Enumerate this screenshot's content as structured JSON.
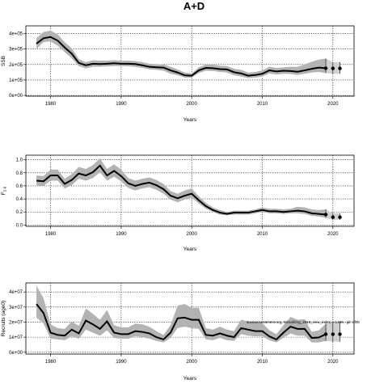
{
  "title": "A+D",
  "footnote": "stockassessment.org, NSsallring_2019_new_index, r-1465 , git: df0b",
  "chart_data": [
    {
      "type": "line",
      "ylabel": "SSB",
      "xlabel": "Years",
      "xlim": [
        1976.5,
        2023
      ],
      "ylim": [
        -5000,
        450000
      ],
      "yticks": [
        0,
        100000,
        200000,
        300000,
        400000
      ],
      "ytick_labels": [
        "0e+00",
        "1e+05",
        "2e+05",
        "3e+05",
        "4e+05"
      ],
      "xticks": [
        1980,
        1990,
        2000,
        2010,
        2020
      ],
      "xtick_labels": [
        "1980",
        "1990",
        "2000",
        "2010",
        "2020"
      ],
      "grid": "dotted",
      "years": [
        1978,
        1979,
        1980,
        1981,
        1982,
        1983,
        1984,
        1985,
        1986,
        1987,
        1988,
        1989,
        1990,
        1991,
        1992,
        1993,
        1994,
        1995,
        1996,
        1997,
        1998,
        1999,
        2000,
        2001,
        2002,
        2003,
        2004,
        2005,
        2006,
        2007,
        2008,
        2009,
        2010,
        2011,
        2012,
        2013,
        2014,
        2015,
        2016,
        2017,
        2018,
        2019
      ],
      "estimate": [
        335000,
        370000,
        378000,
        355000,
        310000,
        270000,
        210000,
        195000,
        205000,
        203000,
        205000,
        208000,
        205000,
        205000,
        203000,
        195000,
        185000,
        182000,
        180000,
        162000,
        148000,
        130000,
        128000,
        162000,
        178000,
        176000,
        170000,
        168000,
        150000,
        142000,
        128000,
        132000,
        140000,
        162000,
        155000,
        160000,
        158000,
        153000,
        162000,
        172000,
        180000,
        176000
      ],
      "lower": [
        300000,
        345000,
        350000,
        322000,
        280000,
        240000,
        190000,
        175000,
        185000,
        185000,
        188000,
        190000,
        190000,
        188000,
        185000,
        178000,
        168000,
        165000,
        160000,
        140000,
        130000,
        115000,
        115000,
        145000,
        160000,
        158000,
        152000,
        148000,
        130000,
        122000,
        112000,
        115000,
        122000,
        142000,
        135000,
        140000,
        138000,
        132000,
        140000,
        148000,
        152000,
        145000
      ],
      "upper": [
        370000,
        410000,
        420000,
        395000,
        345000,
        305000,
        235000,
        215000,
        228000,
        225000,
        225000,
        228000,
        225000,
        225000,
        222000,
        215000,
        205000,
        202000,
        200000,
        185000,
        168000,
        148000,
        142000,
        182000,
        200000,
        200000,
        192000,
        190000,
        172000,
        165000,
        148000,
        152000,
        162000,
        185000,
        178000,
        182000,
        185000,
        185000,
        200000,
        218000,
        232000,
        238000
      ],
      "forecast_years": [
        2020,
        2021
      ],
      "forecast_estimate": [
        175000,
        175000
      ],
      "forecast_lower": [
        140000,
        140000
      ],
      "forecast_upper": [
        215000,
        215000
      ],
      "last_year_point": [
        2019,
        176000
      ]
    },
    {
      "type": "line",
      "ylabel": "F2-6",
      "ylabel_main": "F",
      "ylabel_sub": "2-6",
      "xlabel": "Years",
      "xlim": [
        1976.5,
        2023
      ],
      "ylim": [
        -0.02,
        1.07
      ],
      "yticks": [
        0,
        0.2,
        0.4,
        0.6,
        0.8,
        1.0
      ],
      "ytick_labels": [
        "0.0",
        "0.2",
        "0.4",
        "0.6",
        "0.8",
        "1.0"
      ],
      "xticks": [
        1980,
        1990,
        2000,
        2010,
        2020
      ],
      "xtick_labels": [
        "1980",
        "1990",
        "2000",
        "2010",
        "2020"
      ],
      "grid": "dotted",
      "years": [
        1978,
        1979,
        1980,
        1981,
        1982,
        1983,
        1984,
        1985,
        1986,
        1987,
        1988,
        1989,
        1990,
        1991,
        1992,
        1993,
        1994,
        1995,
        1996,
        1997,
        1998,
        1999,
        2000,
        2001,
        2002,
        2003,
        2004,
        2005,
        2006,
        2007,
        2008,
        2009,
        2010,
        2011,
        2012,
        2013,
        2014,
        2015,
        2016,
        2017,
        2018,
        2019
      ],
      "estimate": [
        0.68,
        0.67,
        0.76,
        0.76,
        0.63,
        0.69,
        0.79,
        0.76,
        0.81,
        0.91,
        0.76,
        0.83,
        0.75,
        0.64,
        0.6,
        0.63,
        0.65,
        0.61,
        0.55,
        0.45,
        0.41,
        0.45,
        0.48,
        0.38,
        0.29,
        0.23,
        0.19,
        0.17,
        0.19,
        0.19,
        0.19,
        0.21,
        0.23,
        0.21,
        0.21,
        0.2,
        0.21,
        0.22,
        0.21,
        0.18,
        0.17,
        0.16
      ],
      "lower": [
        0.61,
        0.6,
        0.68,
        0.68,
        0.56,
        0.61,
        0.71,
        0.68,
        0.72,
        0.81,
        0.68,
        0.74,
        0.67,
        0.57,
        0.53,
        0.56,
        0.58,
        0.54,
        0.48,
        0.39,
        0.35,
        0.39,
        0.42,
        0.33,
        0.25,
        0.2,
        0.16,
        0.15,
        0.16,
        0.16,
        0.16,
        0.18,
        0.2,
        0.18,
        0.18,
        0.17,
        0.18,
        0.18,
        0.17,
        0.14,
        0.13,
        0.11
      ],
      "upper": [
        0.76,
        0.75,
        0.85,
        0.85,
        0.71,
        0.78,
        0.89,
        0.86,
        0.92,
        1.02,
        0.86,
        0.93,
        0.85,
        0.72,
        0.68,
        0.71,
        0.73,
        0.69,
        0.63,
        0.52,
        0.48,
        0.53,
        0.56,
        0.44,
        0.34,
        0.27,
        0.23,
        0.2,
        0.22,
        0.22,
        0.22,
        0.24,
        0.27,
        0.25,
        0.25,
        0.24,
        0.25,
        0.28,
        0.27,
        0.24,
        0.23,
        0.24
      ],
      "forecast_years": [
        2020,
        2021
      ],
      "forecast_estimate": [
        0.12,
        0.12
      ],
      "forecast_lower": [
        0.08,
        0.08
      ],
      "forecast_upper": [
        0.18,
        0.18
      ],
      "last_year_point": [
        2019,
        0.16
      ]
    },
    {
      "type": "line",
      "ylabel": "Recruits (age0)",
      "xlabel": "Years",
      "xlim": [
        1976.5,
        2023
      ],
      "ylim": [
        -1200000,
        46000000
      ],
      "yticks": [
        0,
        10000000,
        20000000,
        30000000,
        40000000
      ],
      "ytick_labels": [
        "0e+00",
        "1e+07",
        "2e+07",
        "3e+07",
        "4e+07"
      ],
      "xticks": [
        1980,
        1990,
        2000,
        2010,
        2020
      ],
      "xtick_labels": [
        "1980",
        "1990",
        "2000",
        "2010",
        "2020"
      ],
      "grid": "dotted",
      "years": [
        1978,
        1979,
        1980,
        1981,
        1982,
        1983,
        1984,
        1985,
        1986,
        1987,
        1988,
        1989,
        1990,
        1991,
        1992,
        1993,
        1994,
        1995,
        1996,
        1997,
        1998,
        1999,
        2000,
        2001,
        2002,
        2003,
        2004,
        2005,
        2006,
        2007,
        2008,
        2009,
        2010,
        2011,
        2012,
        2013,
        2014,
        2015,
        2016,
        2017,
        2018,
        2019
      ],
      "estimate": [
        32000000,
        26000000,
        13000000,
        11500000,
        11000000,
        15000000,
        12500000,
        21000000,
        18500000,
        15500000,
        20500000,
        13000000,
        12000000,
        12000000,
        14000000,
        13500000,
        12500000,
        10000000,
        8500000,
        13000000,
        22500000,
        23000000,
        21500000,
        21500000,
        11500000,
        11000000,
        12500000,
        11000000,
        10000000,
        16000000,
        15000000,
        14000000,
        14000000,
        10500000,
        8500000,
        13000000,
        17000000,
        15500000,
        15500000,
        9500000,
        9800000,
        12000000
      ],
      "lower": [
        23000000,
        19000000,
        9000000,
        8500000,
        8000000,
        10500000,
        9000000,
        15000000,
        13000000,
        11000000,
        14500000,
        9500000,
        9000000,
        9000000,
        10500000,
        10000000,
        9000000,
        7500000,
        6500000,
        9500000,
        16000000,
        17000000,
        16000000,
        15500000,
        8500000,
        8000000,
        9500000,
        8000000,
        7500000,
        12000000,
        11000000,
        10500000,
        10500000,
        8000000,
        6500000,
        9500000,
        12500000,
        11000000,
        11000000,
        6500000,
        6500000,
        7500000
      ],
      "upper": [
        44000000,
        36000000,
        18500000,
        16000000,
        15500000,
        20500000,
        17500000,
        29000000,
        25500000,
        21500000,
        28000000,
        18000000,
        16500000,
        16500000,
        19000000,
        18500000,
        17000000,
        14000000,
        11500000,
        18000000,
        31000000,
        32000000,
        29500000,
        29500000,
        16000000,
        15000000,
        17000000,
        15000000,
        14000000,
        21500000,
        20500000,
        19500000,
        19500000,
        14500000,
        12000000,
        18000000,
        23500000,
        21500000,
        22000000,
        13500000,
        14500000,
        19000000
      ],
      "forecast_years": [
        2020,
        2021
      ],
      "forecast_estimate": [
        12000000,
        12000000
      ],
      "forecast_lower": [
        7000000,
        7000000
      ],
      "forecast_upper": [
        20000000,
        20000000
      ],
      "last_year_point": [
        2019,
        12000000
      ]
    }
  ]
}
